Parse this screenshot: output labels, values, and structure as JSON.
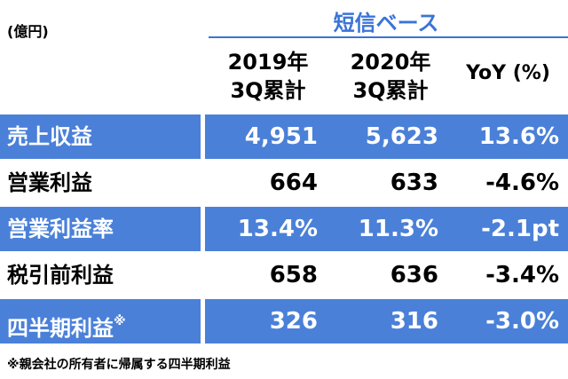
{
  "unit": "(億円)",
  "header": {
    "title": "短信ベース",
    "columns": [
      {
        "year": "2019年",
        "period": "3Q累計"
      },
      {
        "year": "2020年",
        "period": "3Q累計"
      }
    ],
    "yoy": "YoY (%)"
  },
  "table": {
    "rows": [
      {
        "label": "売上収益",
        "cells": [
          "4,951",
          "5,623",
          "13.6%"
        ]
      },
      {
        "label": "営業利益",
        "cells": [
          "664",
          "633",
          "-4.6%"
        ]
      },
      {
        "label": "営業利益率",
        "cells": [
          "13.4%",
          "11.3%",
          "-2.1pt"
        ]
      },
      {
        "label": "税引前利益",
        "cells": [
          "658",
          "636",
          "-3.4%"
        ]
      },
      {
        "label": "四半期利益",
        "label_note": "※",
        "cells": [
          "326",
          "316",
          "-3.0%"
        ]
      }
    ]
  },
  "footnote": "※親会社の所有者に帰属する四半期利益"
}
